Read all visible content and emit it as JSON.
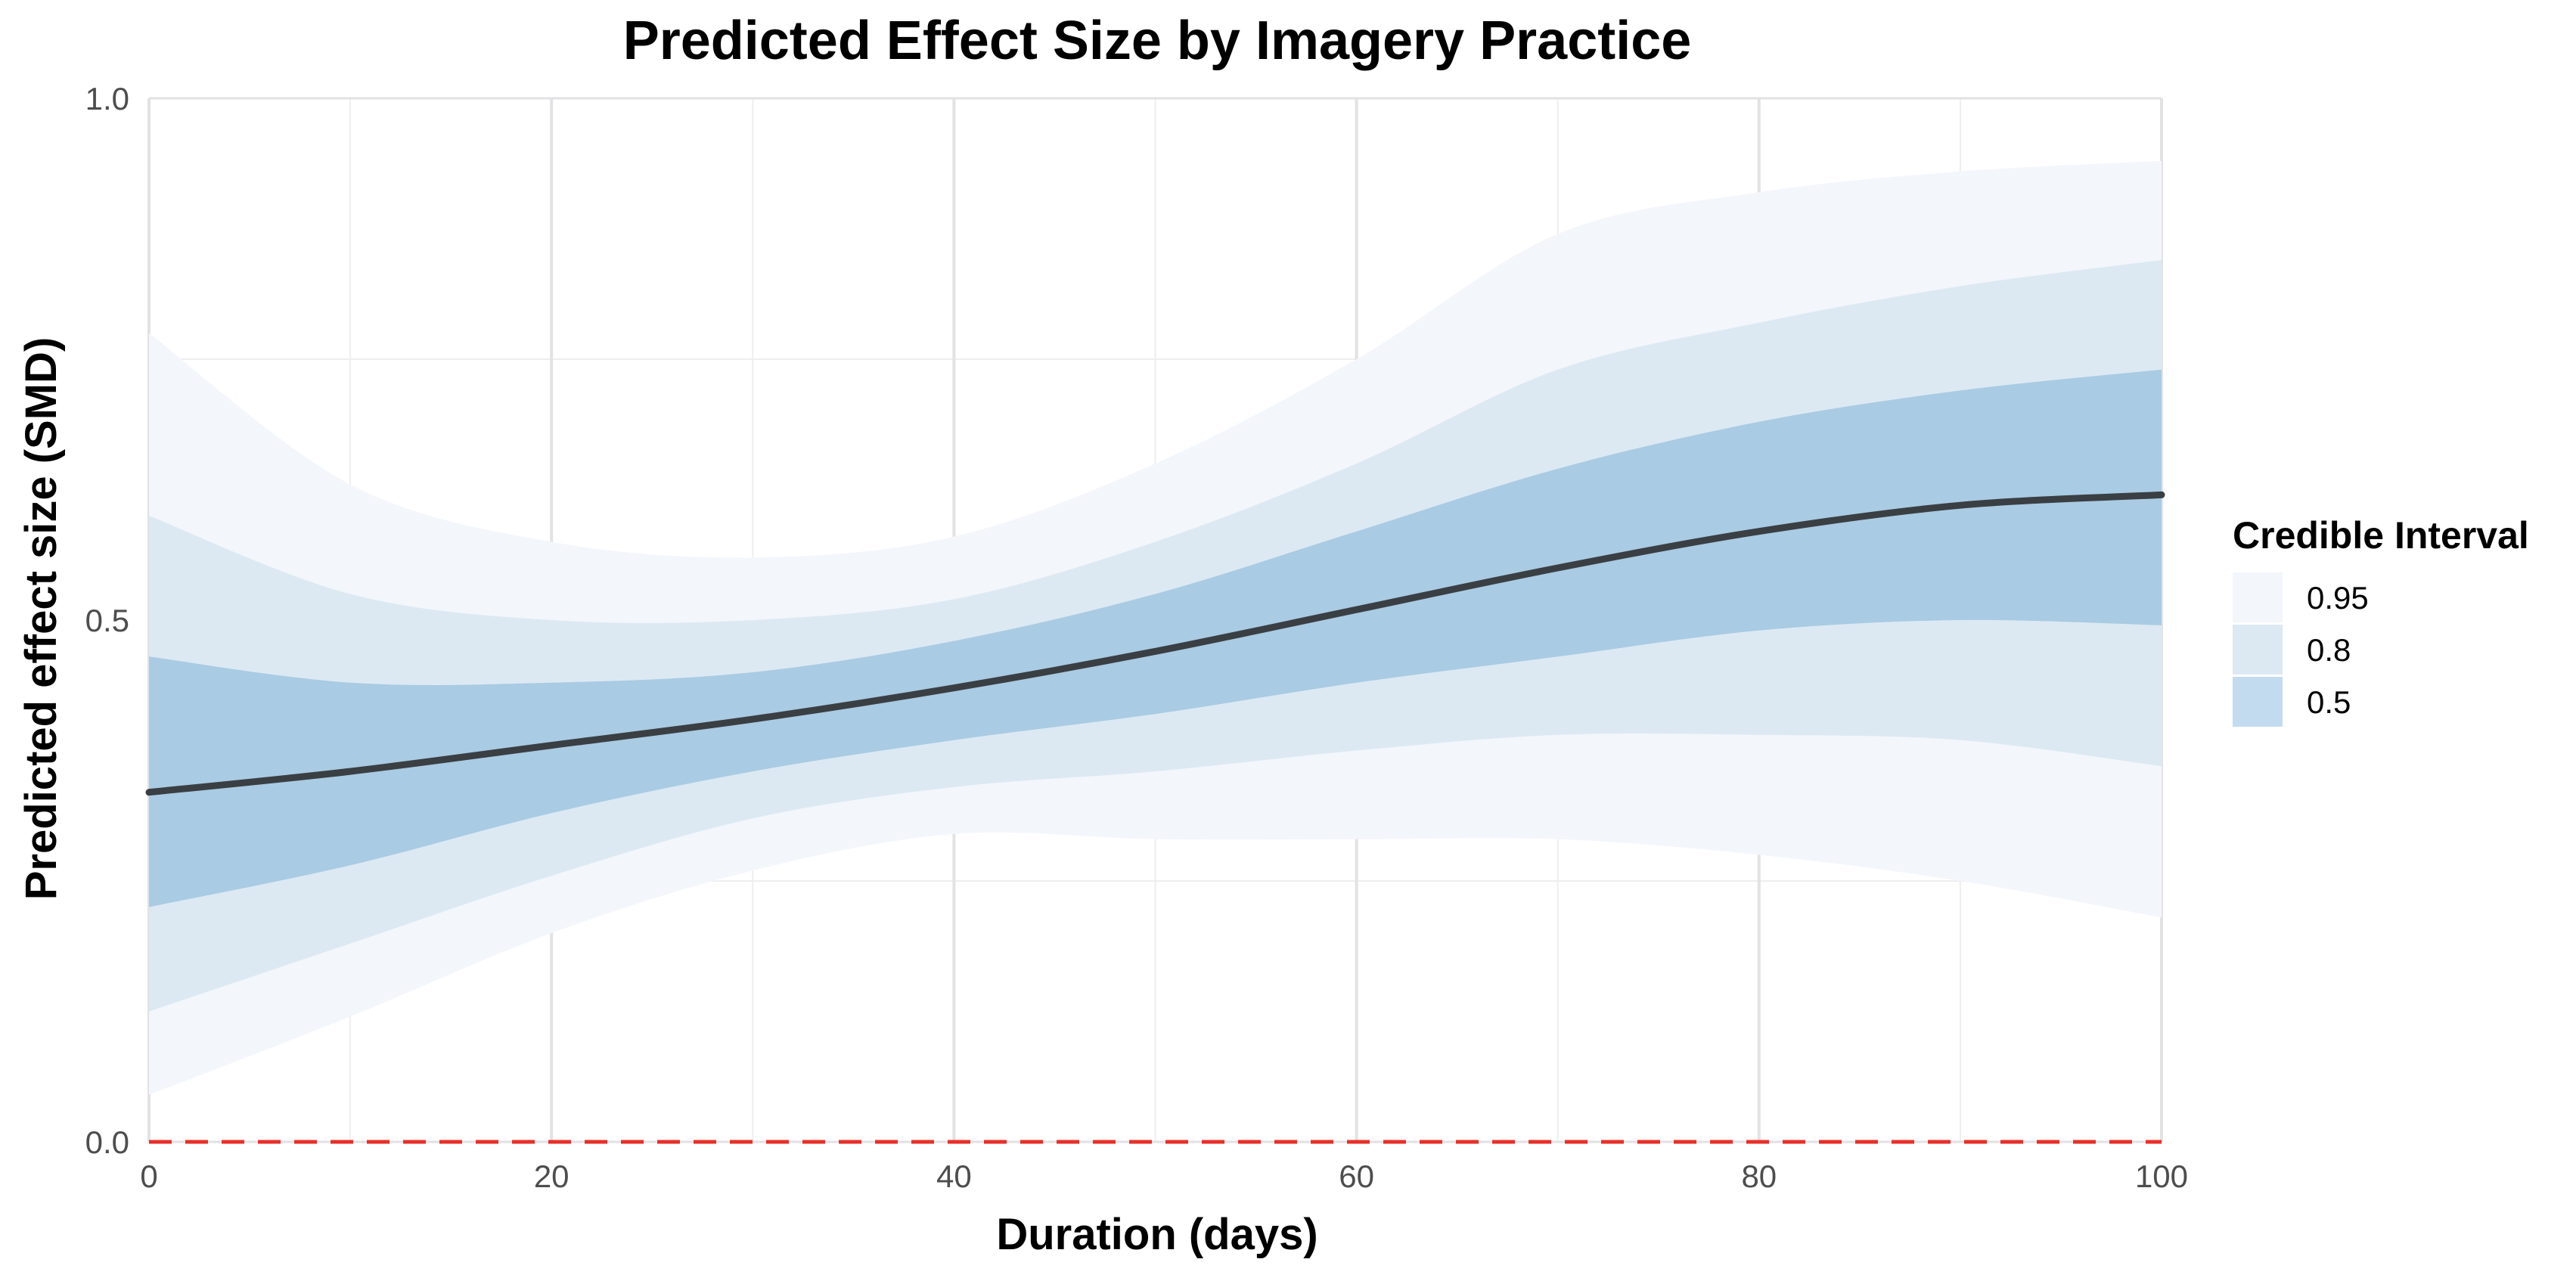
{
  "chart_data": {
    "type": "line",
    "title": "Predicted Effect Size by Imagery Practice",
    "xlabel": "Duration (days)",
    "ylabel": "Predicted effect size (SMD)",
    "xlim": [
      0,
      100
    ],
    "ylim": [
      0,
      1
    ],
    "x_ticks": [
      0,
      20,
      40,
      60,
      80,
      100
    ],
    "x_tick_labels": [
      "0",
      "20",
      "40",
      "60",
      "80",
      "100"
    ],
    "y_ticks": [
      0,
      0.5,
      1
    ],
    "y_tick_labels": [
      "0.0",
      "0.5",
      "1.0"
    ],
    "grid": true,
    "reference_line": {
      "y": 0,
      "color": "#e8302a",
      "style": "dashed"
    },
    "x": [
      0,
      10,
      20,
      30,
      40,
      50,
      60,
      70,
      80,
      90,
      100
    ],
    "median": [
      0.335,
      0.355,
      0.38,
      0.405,
      0.435,
      0.47,
      0.51,
      0.55,
      0.585,
      0.61,
      0.62
    ],
    "intervals": [
      {
        "level": "0.95",
        "color": "#f3f6fb",
        "lower": [
          0.045,
          0.12,
          0.2,
          0.26,
          0.295,
          0.29,
          0.29,
          0.29,
          0.275,
          0.25,
          0.215
        ],
        "upper": [
          0.775,
          0.63,
          0.575,
          0.56,
          0.58,
          0.65,
          0.75,
          0.87,
          0.91,
          0.93,
          0.94
        ]
      },
      {
        "level": "0.8",
        "color": "#dce9f3",
        "lower": [
          0.125,
          0.19,
          0.255,
          0.31,
          0.34,
          0.355,
          0.375,
          0.39,
          0.39,
          0.385,
          0.36
        ],
        "upper": [
          0.6,
          0.525,
          0.5,
          0.5,
          0.52,
          0.575,
          0.65,
          0.74,
          0.785,
          0.82,
          0.845
        ]
      },
      {
        "level": "0.5",
        "color": "#a9cbe3",
        "lower": [
          0.225,
          0.265,
          0.315,
          0.355,
          0.385,
          0.41,
          0.44,
          0.465,
          0.49,
          0.5,
          0.495
        ],
        "upper": [
          0.465,
          0.44,
          0.44,
          0.45,
          0.48,
          0.525,
          0.585,
          0.645,
          0.69,
          0.72,
          0.74
        ]
      }
    ],
    "legend": {
      "title": "Credible Interval",
      "position": "right",
      "entries": [
        {
          "label": "0.95",
          "color": "#f3f6fb"
        },
        {
          "label": "0.8",
          "color": "#dce9f3"
        },
        {
          "label": "0.5",
          "color": "#c3dbee"
        }
      ]
    },
    "line_color": "#3a3f44"
  }
}
